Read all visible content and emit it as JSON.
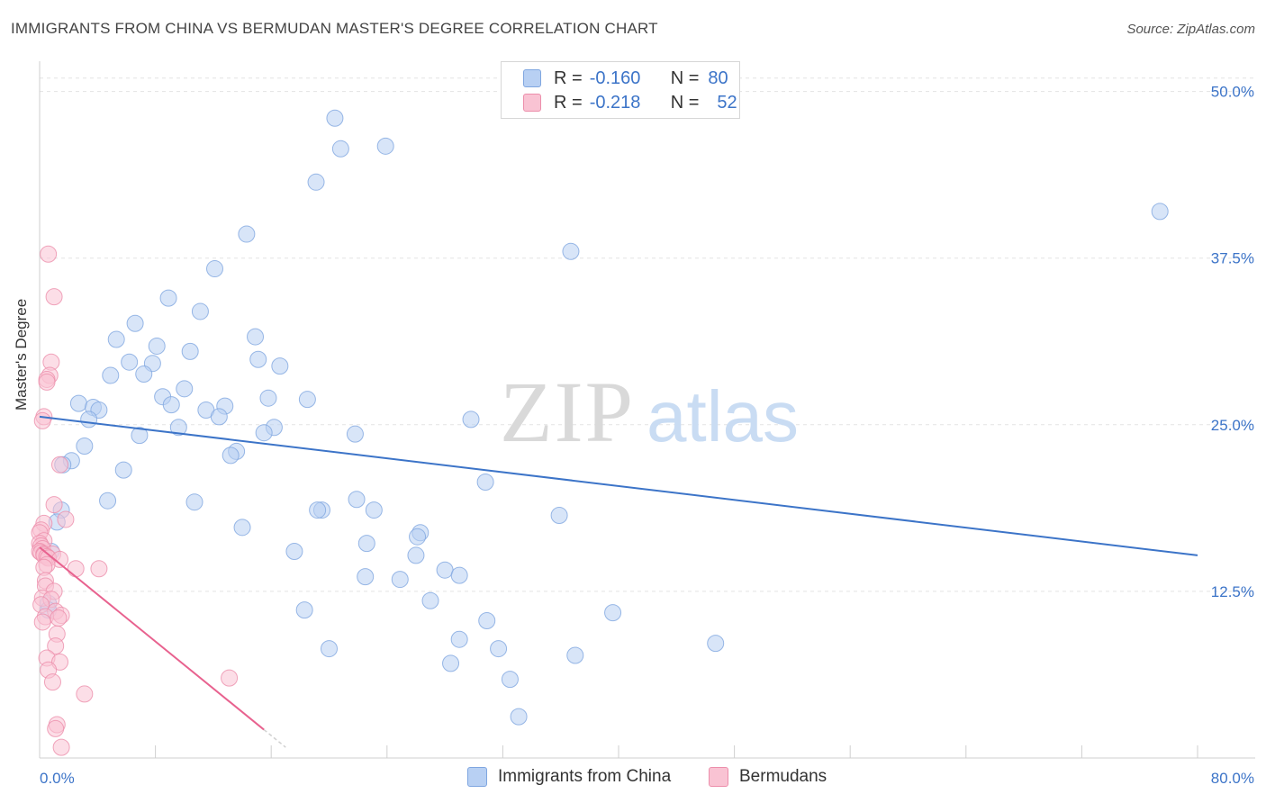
{
  "title": "IMMIGRANTS FROM CHINA VS BERMUDAN MASTER'S DEGREE CORRELATION CHART",
  "source": "Source: ZipAtlas.com",
  "watermark": {
    "zip": "ZIP",
    "atlas": "atlas"
  },
  "legend": {
    "r_label": "R =",
    "n_label": "N =",
    "rows": [
      {
        "name": "Immigrants from China",
        "r": "-0.160",
        "n": "80"
      },
      {
        "name": "Bermudans",
        "r": "-0.218",
        "n": "52"
      }
    ]
  },
  "colors": {
    "blue": "#3c74c8",
    "blue_fill": "#b8d0f3",
    "pink": "#e8628f",
    "pink_fill": "#f9c3d3"
  },
  "chart_data": {
    "type": "scatter",
    "title": "IMMIGRANTS FROM CHINA VS BERMUDAN MASTER'S DEGREE CORRELATION CHART",
    "xlabel": "",
    "ylabel": "Master's Degree",
    "xlim": [
      0,
      80
    ],
    "ylim": [
      0,
      52
    ],
    "x_tick_labels": [
      "0.0%",
      "80.0%"
    ],
    "y_ticks": [
      12.5,
      25.0,
      37.5,
      50.0
    ],
    "y_tick_labels": [
      "12.5%",
      "25.0%",
      "37.5%",
      "50.0%"
    ],
    "grid": true,
    "legend_position": "top-center",
    "series": [
      {
        "name": "Immigrants from China",
        "color": "#3c74c8",
        "points": [
          [
            20.4,
            48.0
          ],
          [
            23.9,
            45.9
          ],
          [
            20.8,
            45.7
          ],
          [
            19.1,
            43.2
          ],
          [
            77.4,
            41.0
          ],
          [
            14.3,
            39.3
          ],
          [
            36.7,
            38.0
          ],
          [
            12.1,
            36.7
          ],
          [
            8.9,
            34.5
          ],
          [
            11.1,
            33.5
          ],
          [
            6.6,
            32.6
          ],
          [
            14.9,
            31.6
          ],
          [
            5.3,
            31.4
          ],
          [
            8.1,
            30.9
          ],
          [
            10.4,
            30.5
          ],
          [
            15.1,
            29.9
          ],
          [
            6.2,
            29.7
          ],
          [
            7.8,
            29.6
          ],
          [
            16.6,
            29.4
          ],
          [
            4.9,
            28.7
          ],
          [
            7.2,
            28.8
          ],
          [
            10.0,
            27.7
          ],
          [
            8.5,
            27.1
          ],
          [
            15.8,
            27.0
          ],
          [
            18.5,
            26.9
          ],
          [
            2.7,
            26.6
          ],
          [
            3.7,
            26.3
          ],
          [
            9.1,
            26.5
          ],
          [
            12.8,
            26.4
          ],
          [
            11.5,
            26.1
          ],
          [
            4.1,
            26.1
          ],
          [
            12.4,
            25.6
          ],
          [
            3.4,
            25.4
          ],
          [
            29.8,
            25.4
          ],
          [
            9.6,
            24.8
          ],
          [
            16.2,
            24.8
          ],
          [
            15.5,
            24.4
          ],
          [
            21.8,
            24.3
          ],
          [
            6.9,
            24.2
          ],
          [
            3.1,
            23.4
          ],
          [
            13.6,
            23.0
          ],
          [
            13.2,
            22.7
          ],
          [
            2.2,
            22.3
          ],
          [
            1.6,
            22.0
          ],
          [
            5.8,
            21.6
          ],
          [
            30.8,
            20.7
          ],
          [
            4.7,
            19.3
          ],
          [
            10.7,
            19.2
          ],
          [
            21.9,
            19.4
          ],
          [
            1.5,
            18.6
          ],
          [
            19.5,
            18.6
          ],
          [
            19.2,
            18.6
          ],
          [
            23.1,
            18.6
          ],
          [
            35.9,
            18.2
          ],
          [
            1.2,
            17.7
          ],
          [
            14.0,
            17.3
          ],
          [
            26.3,
            16.9
          ],
          [
            26.1,
            16.6
          ],
          [
            22.6,
            16.1
          ],
          [
            17.6,
            15.5
          ],
          [
            26.0,
            15.2
          ],
          [
            0.8,
            15.5
          ],
          [
            28.0,
            14.1
          ],
          [
            22.5,
            13.6
          ],
          [
            29.0,
            13.7
          ],
          [
            24.9,
            13.4
          ],
          [
            0.6,
            11.6
          ],
          [
            0.6,
            11.1
          ],
          [
            27.0,
            11.8
          ],
          [
            18.3,
            11.1
          ],
          [
            39.6,
            10.9
          ],
          [
            30.9,
            10.3
          ],
          [
            29.0,
            8.9
          ],
          [
            46.7,
            8.6
          ],
          [
            20.0,
            8.2
          ],
          [
            31.7,
            8.2
          ],
          [
            37.0,
            7.7
          ],
          [
            28.4,
            7.1
          ],
          [
            32.5,
            5.9
          ],
          [
            33.1,
            3.1
          ]
        ]
      },
      {
        "name": "Bermudans",
        "color": "#e8628f",
        "points": [
          [
            0.6,
            37.8
          ],
          [
            1.0,
            34.6
          ],
          [
            0.8,
            29.7
          ],
          [
            0.7,
            28.7
          ],
          [
            0.5,
            28.4
          ],
          [
            0.5,
            28.2
          ],
          [
            0.3,
            25.6
          ],
          [
            0.2,
            25.3
          ],
          [
            1.4,
            22.0
          ],
          [
            1.0,
            19.0
          ],
          [
            1.8,
            17.9
          ],
          [
            0.3,
            17.6
          ],
          [
            0.1,
            17.1
          ],
          [
            0.0,
            16.9
          ],
          [
            0.3,
            16.3
          ],
          [
            0.0,
            16.1
          ],
          [
            0.1,
            15.9
          ],
          [
            0.2,
            15.7
          ],
          [
            0.0,
            15.5
          ],
          [
            0.1,
            15.4
          ],
          [
            0.3,
            15.3
          ],
          [
            0.9,
            15.3
          ],
          [
            0.3,
            15.2
          ],
          [
            0.5,
            15.1
          ],
          [
            0.6,
            15.0
          ],
          [
            1.4,
            14.9
          ],
          [
            2.5,
            14.2
          ],
          [
            4.1,
            14.2
          ],
          [
            0.5,
            14.5
          ],
          [
            0.3,
            14.3
          ],
          [
            0.4,
            13.3
          ],
          [
            0.4,
            12.9
          ],
          [
            1.0,
            12.5
          ],
          [
            0.2,
            12.0
          ],
          [
            0.8,
            11.9
          ],
          [
            0.1,
            11.5
          ],
          [
            1.1,
            11.0
          ],
          [
            1.5,
            10.7
          ],
          [
            0.4,
            10.6
          ],
          [
            1.3,
            10.5
          ],
          [
            0.2,
            10.2
          ],
          [
            1.2,
            9.3
          ],
          [
            1.1,
            8.4
          ],
          [
            0.5,
            7.5
          ],
          [
            1.4,
            7.2
          ],
          [
            0.6,
            6.6
          ],
          [
            13.1,
            6.0
          ],
          [
            0.9,
            5.7
          ],
          [
            3.1,
            4.8
          ],
          [
            1.2,
            2.5
          ],
          [
            1.1,
            2.2
          ],
          [
            1.5,
            0.8
          ]
        ]
      }
    ],
    "trendlines": [
      {
        "series": "Immigrants from China",
        "x": [
          0,
          80
        ],
        "y": [
          25.6,
          15.2
        ]
      },
      {
        "series": "Bermudans",
        "x": [
          0,
          17
        ],
        "y": [
          15.8,
          0.8
        ],
        "solid_until_x": 15.5
      }
    ]
  }
}
